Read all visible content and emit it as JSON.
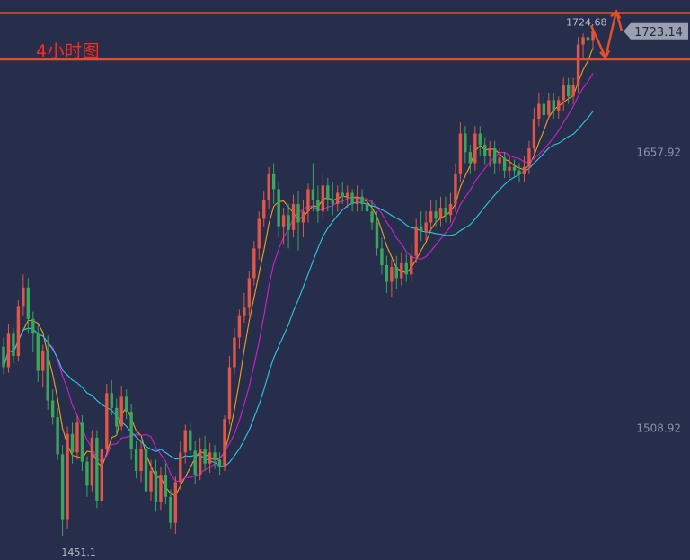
{
  "title": "4小时图",
  "colors": {
    "background": "#272e4b",
    "up": "#e0574a",
    "down": "#3ba55a",
    "ma_fast": "#f0a020",
    "ma_mid": "#d020d0",
    "ma_slow": "#30c8e0",
    "resistance": "#e0502a",
    "arrow": "#e0502a",
    "price_tag": "#9aa0b0"
  },
  "chart_data": {
    "type": "candlestick",
    "title": "4小时图",
    "y_ticks": [
      "1657.92",
      "1508.92"
    ],
    "y_tick_values": [
      1657.92,
      1508.92
    ],
    "ylim": [
      1438,
      1740
    ],
    "last_price": "1723.14",
    "last_price_value": 1723.14,
    "high_label": "1724.68",
    "high_value": 1724.68,
    "low_label": "1451.1",
    "low_value": 1451.1,
    "resistance_levels": [
      1733,
      1708
    ],
    "candles": [
      [
        1553,
        1542,
        1558,
        1538
      ],
      [
        1542,
        1560,
        1565,
        1539
      ],
      [
        1560,
        1548,
        1563,
        1544
      ],
      [
        1548,
        1575,
        1578,
        1545
      ],
      [
        1575,
        1585,
        1592,
        1570
      ],
      [
        1585,
        1568,
        1590,
        1560
      ],
      [
        1568,
        1560,
        1572,
        1550
      ],
      [
        1560,
        1540,
        1565,
        1534
      ],
      [
        1540,
        1551,
        1554,
        1531
      ],
      [
        1551,
        1524,
        1559,
        1519
      ],
      [
        1524,
        1515,
        1530,
        1511
      ],
      [
        1515,
        1495,
        1520,
        1492
      ],
      [
        1495,
        1460,
        1500,
        1451.1
      ],
      [
        1460,
        1506,
        1510,
        1455
      ],
      [
        1506,
        1496,
        1512,
        1490
      ],
      [
        1496,
        1512,
        1516,
        1492
      ],
      [
        1512,
        1491,
        1516,
        1486
      ],
      [
        1491,
        1478,
        1494,
        1472
      ],
      [
        1478,
        1504,
        1508,
        1475
      ],
      [
        1504,
        1470,
        1508,
        1466
      ],
      [
        1470,
        1498,
        1502,
        1466
      ],
      [
        1498,
        1528,
        1533,
        1496
      ],
      [
        1528,
        1520,
        1535,
        1516
      ],
      [
        1520,
        1510,
        1525,
        1505
      ],
      [
        1510,
        1526,
        1532,
        1508
      ],
      [
        1526,
        1518,
        1530,
        1514
      ],
      [
        1518,
        1498,
        1522,
        1492
      ],
      [
        1498,
        1486,
        1502,
        1482
      ],
      [
        1486,
        1498,
        1502,
        1480
      ],
      [
        1498,
        1475,
        1505,
        1468
      ],
      [
        1475,
        1486,
        1492,
        1470
      ],
      [
        1486,
        1469,
        1492,
        1464
      ],
      [
        1469,
        1484,
        1488,
        1465
      ],
      [
        1484,
        1472,
        1490,
        1468
      ],
      [
        1472,
        1458,
        1476,
        1455
      ],
      [
        1458,
        1480,
        1483,
        1452
      ],
      [
        1480,
        1496,
        1502,
        1476
      ],
      [
        1496,
        1508,
        1511,
        1490
      ],
      [
        1508,
        1497,
        1512,
        1494
      ],
      [
        1497,
        1484,
        1502,
        1479
      ],
      [
        1484,
        1498,
        1504,
        1481
      ],
      [
        1498,
        1490,
        1505,
        1486
      ],
      [
        1490,
        1496,
        1501,
        1485
      ],
      [
        1496,
        1492,
        1500,
        1487
      ],
      [
        1492,
        1488,
        1496,
        1484
      ],
      [
        1488,
        1514,
        1516,
        1486
      ],
      [
        1514,
        1542,
        1548,
        1511
      ],
      [
        1542,
        1558,
        1563,
        1538
      ],
      [
        1558,
        1570,
        1573,
        1552
      ],
      [
        1570,
        1574,
        1582,
        1566
      ],
      [
        1574,
        1590,
        1594,
        1570
      ],
      [
        1590,
        1606,
        1610,
        1586
      ],
      [
        1606,
        1622,
        1626,
        1600
      ],
      [
        1622,
        1632,
        1637,
        1618
      ],
      [
        1632,
        1646,
        1650,
        1627
      ],
      [
        1646,
        1638,
        1652,
        1630
      ],
      [
        1638,
        1618,
        1642,
        1612
      ],
      [
        1618,
        1624,
        1628,
        1608
      ],
      [
        1624,
        1616,
        1630,
        1606
      ],
      [
        1616,
        1630,
        1635,
        1612
      ],
      [
        1630,
        1620,
        1637,
        1605
      ],
      [
        1620,
        1626,
        1632,
        1612
      ],
      [
        1626,
        1638,
        1641,
        1620
      ],
      [
        1638,
        1632,
        1652,
        1626
      ],
      [
        1632,
        1626,
        1640,
        1620
      ],
      [
        1626,
        1640,
        1646,
        1622
      ],
      [
        1640,
        1632,
        1644,
        1626
      ],
      [
        1632,
        1630,
        1642,
        1624
      ],
      [
        1630,
        1636,
        1640,
        1626
      ],
      [
        1636,
        1634,
        1642,
        1630
      ],
      [
        1634,
        1636,
        1640,
        1628
      ],
      [
        1636,
        1630,
        1638,
        1626
      ],
      [
        1630,
        1634,
        1640,
        1626
      ],
      [
        1634,
        1630,
        1638,
        1626
      ],
      [
        1630,
        1626,
        1634,
        1622
      ],
      [
        1626,
        1620,
        1632,
        1616
      ],
      [
        1620,
        1606,
        1626,
        1602
      ],
      [
        1606,
        1597,
        1612,
        1592
      ],
      [
        1597,
        1588,
        1602,
        1582
      ],
      [
        1588,
        1596,
        1600,
        1580
      ],
      [
        1596,
        1590,
        1602,
        1584
      ],
      [
        1590,
        1598,
        1604,
        1586
      ],
      [
        1598,
        1592,
        1603,
        1588
      ],
      [
        1592,
        1602,
        1608,
        1588
      ],
      [
        1602,
        1618,
        1622,
        1598
      ],
      [
        1618,
        1615,
        1626,
        1610
      ],
      [
        1615,
        1620,
        1626,
        1610
      ],
      [
        1620,
        1626,
        1632,
        1616
      ],
      [
        1626,
        1622,
        1632,
        1618
      ],
      [
        1622,
        1628,
        1634,
        1618
      ],
      [
        1628,
        1624,
        1634,
        1620
      ],
      [
        1624,
        1630,
        1636,
        1620
      ],
      [
        1630,
        1646,
        1652,
        1626
      ],
      [
        1646,
        1668,
        1674,
        1642
      ],
      [
        1668,
        1658,
        1672,
        1652
      ],
      [
        1658,
        1652,
        1662,
        1646
      ],
      [
        1652,
        1668,
        1672,
        1648
      ],
      [
        1668,
        1662,
        1672,
        1656
      ],
      [
        1662,
        1656,
        1666,
        1651
      ],
      [
        1656,
        1660,
        1664,
        1650
      ],
      [
        1660,
        1652,
        1664,
        1646
      ],
      [
        1652,
        1655,
        1660,
        1648
      ],
      [
        1655,
        1648,
        1658,
        1644
      ],
      [
        1648,
        1650,
        1656,
        1644
      ],
      [
        1650,
        1648,
        1654,
        1644
      ],
      [
        1648,
        1646,
        1652,
        1642
      ],
      [
        1646,
        1650,
        1656,
        1642
      ],
      [
        1650,
        1660,
        1664,
        1646
      ],
      [
        1660,
        1676,
        1682,
        1656
      ],
      [
        1676,
        1684,
        1690,
        1672
      ],
      [
        1684,
        1678,
        1688,
        1674
      ],
      [
        1678,
        1686,
        1690,
        1676
      ],
      [
        1686,
        1680,
        1690,
        1676
      ],
      [
        1680,
        1686,
        1688,
        1676
      ],
      [
        1686,
        1694,
        1698,
        1680
      ],
      [
        1694,
        1688,
        1698,
        1684
      ],
      [
        1688,
        1694,
        1698,
        1684
      ],
      [
        1694,
        1716,
        1720,
        1690
      ],
      [
        1716,
        1720,
        1722,
        1708
      ],
      [
        1720,
        1718,
        1724.68,
        1710
      ],
      [
        1718,
        1723.14,
        1724,
        1714
      ]
    ]
  }
}
